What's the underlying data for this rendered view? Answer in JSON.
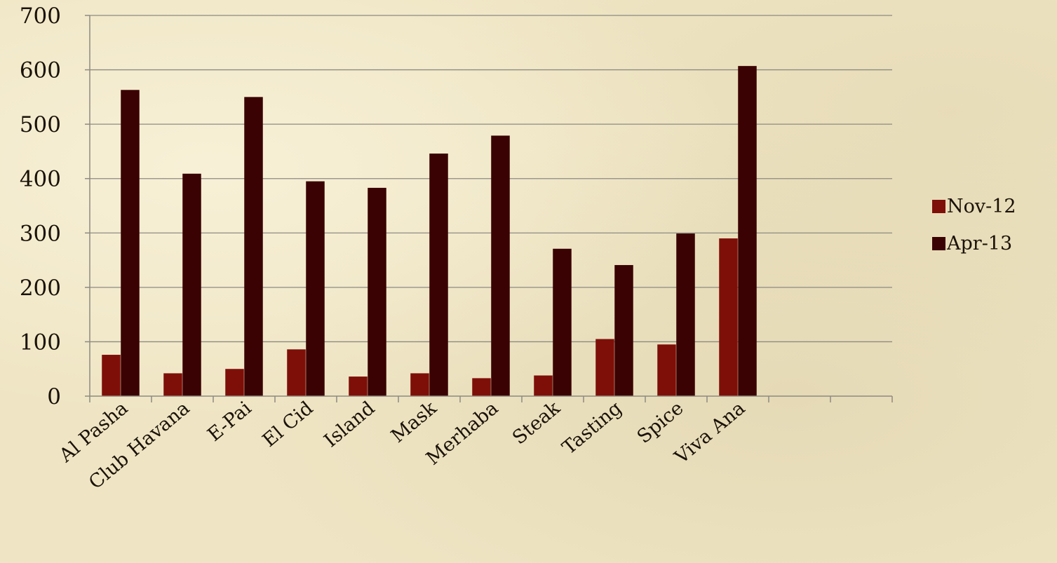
{
  "chart_data": {
    "type": "bar",
    "categories": [
      "Al Pasha",
      "Club Havana",
      "E-Pai",
      "El Cid",
      "Island",
      "Mask",
      "Merhaba",
      "Steak",
      "Tasting",
      "Spice",
      "Viva Ana",
      "",
      ""
    ],
    "series": [
      {
        "name": "Nov-12",
        "color": "#7e0f08",
        "values": [
          76,
          42,
          50,
          86,
          36,
          42,
          33,
          38,
          105,
          95,
          290,
          null,
          null
        ]
      },
      {
        "name": "Apr-13",
        "color": "#3a0202",
        "values": [
          563,
          409,
          550,
          395,
          383,
          446,
          479,
          271,
          241,
          299,
          607,
          null,
          null
        ]
      }
    ],
    "yticks": [
      "0",
      "100",
      "200",
      "300",
      "400",
      "500",
      "600",
      "700"
    ],
    "ylim": [
      0,
      700
    ],
    "grid": true,
    "legend_position": "right"
  }
}
